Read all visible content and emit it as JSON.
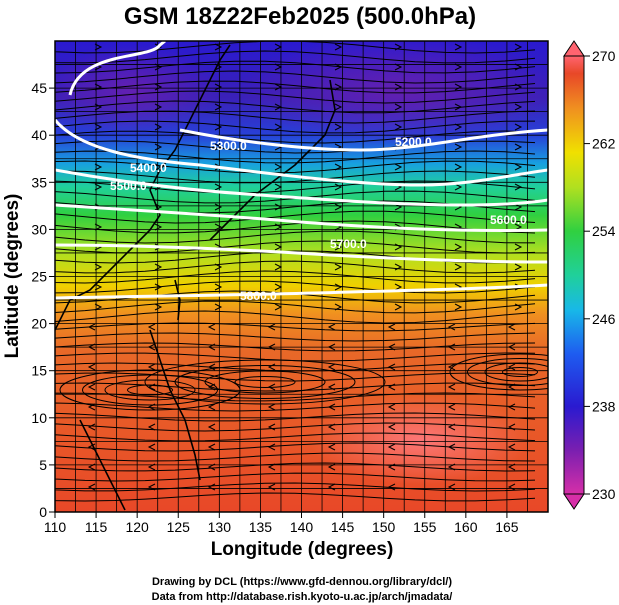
{
  "title": "GSM 18Z22Feb2025 (500.0hPa)",
  "xaxis": {
    "label": "Longitude (degrees)",
    "range": [
      110,
      170
    ],
    "ticks": [
      "110",
      "115",
      "120",
      "125",
      "130",
      "135",
      "140",
      "145",
      "150",
      "155",
      "160",
      "165"
    ]
  },
  "yaxis": {
    "label": "Latitude  (degrees)",
    "range": [
      0,
      50
    ],
    "ticks": [
      "0",
      "5",
      "10",
      "15",
      "20",
      "25",
      "30",
      "35",
      "40",
      "45"
    ]
  },
  "colorbar": {
    "ticks": [
      "230",
      "238",
      "246",
      "254",
      "262",
      "270"
    ],
    "range": [
      230,
      270
    ],
    "colors": [
      "#d62fa8",
      "#7a1fb0",
      "#2a1ad0",
      "#1e5cf0",
      "#18b8e8",
      "#20d09a",
      "#30d040",
      "#b0e020",
      "#f0e000",
      "#f09020",
      "#e84828",
      "#ff6470"
    ]
  },
  "contours": [
    {
      "label": "5200.0"
    },
    {
      "label": "5300.0"
    },
    {
      "label": "5400.0"
    },
    {
      "label": "5500.0"
    },
    {
      "label": "5600.0"
    },
    {
      "label": "5700.0"
    },
    {
      "label": "5800.0"
    }
  ],
  "credits": {
    "line1": "Drawing by DCL (https://www.gfd-dennou.org/library/dcl/)",
    "line2": "Data from http://database.rish.kyoto-u.ac.jp/arch/jmadata/"
  }
}
